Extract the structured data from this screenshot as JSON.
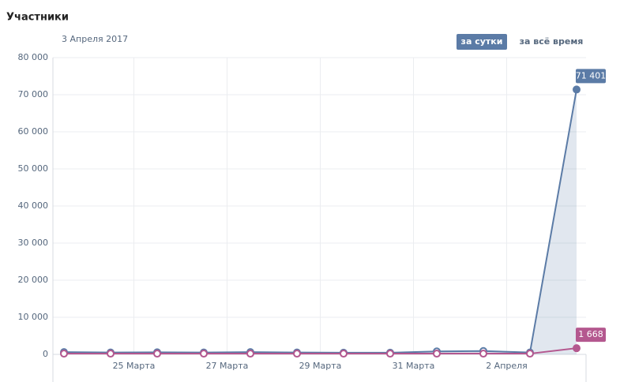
{
  "chart_data": {
    "type": "line",
    "title": "Участники",
    "subtitle": "3 Апреля 2017",
    "buttons": [
      "за сутки",
      "за всё время"
    ],
    "categories": [
      null,
      null,
      "25 Марта",
      null,
      "27 Марта",
      null,
      "29 Марта",
      null,
      "31 Марта",
      null,
      "2 Апреля",
      null
    ],
    "series": [
      {
        "color": "#5b7ba6",
        "values": [
          600,
          500,
          550,
          500,
          600,
          500,
          450,
          450,
          800,
          900,
          500,
          71401
        ],
        "value_labels": [
          null,
          null,
          null,
          null,
          null,
          null,
          null,
          null,
          null,
          null,
          null,
          "71 401"
        ]
      },
      {
        "color": "#b4588f",
        "values": [
          200,
          200,
          200,
          200,
          200,
          200,
          200,
          200,
          200,
          200,
          200,
          1668
        ],
        "value_labels": [
          null,
          null,
          null,
          null,
          null,
          null,
          null,
          null,
          null,
          null,
          null,
          "1 668"
        ]
      }
    ],
    "ylim": [
      0,
      80000
    ],
    "yticks": [
      0,
      {
        "value": 10000,
        "label": "10 000"
      },
      {
        "value": 20000,
        "label": "20 000"
      },
      {
        "value": 30000,
        "label": "30 000"
      },
      {
        "value": 40000,
        "label": "40 000"
      },
      {
        "value": 50000,
        "label": "50 000"
      },
      {
        "value": 60000,
        "label": "60 000"
      },
      {
        "value": 70000,
        "label": "70 000"
      },
      {
        "value": 80000,
        "label": "80 000"
      }
    ],
    "grid": true
  }
}
